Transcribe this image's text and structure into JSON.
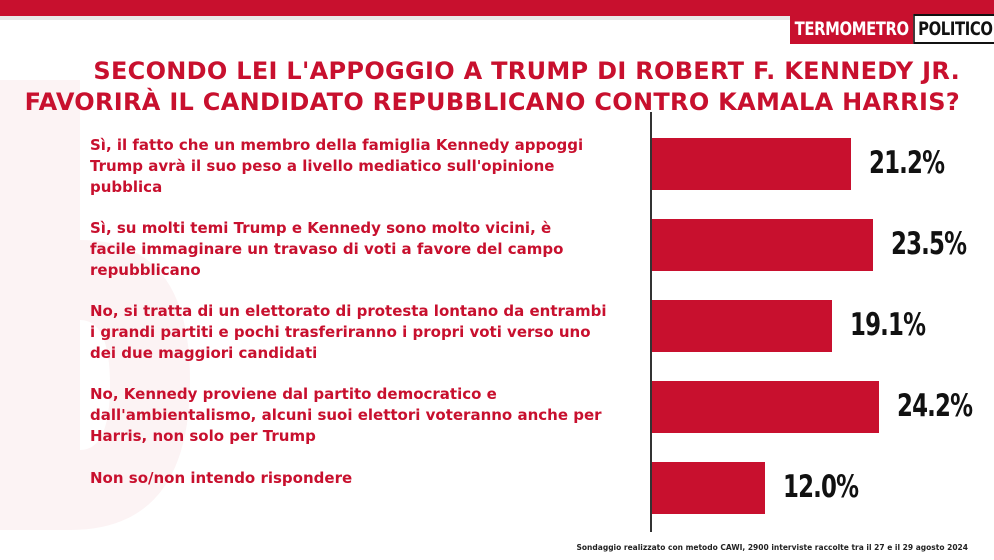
{
  "logo": {
    "part1": "TERMOMETRO",
    "part2": "POLITICO"
  },
  "title": {
    "line1": "SECONDO LEI L'APPOGGIO A TRUMP DI ROBERT F. KENNEDY JR.",
    "line2": "FAVORIRÀ IL CANDIDATO REPUBBLICANO CONTRO KAMALA HARRIS?"
  },
  "chart_data": {
    "type": "bar",
    "orientation": "horizontal",
    "categories": [
      "Sì, il fatto che un membro della famiglia Kennedy appoggi Trump avrà il suo peso a livello mediatico sull'opinione pubblica",
      "Sì, su molti temi Trump e Kennedy sono molto vicini, è facile immaginare un travaso di voti a favore del campo repubblicano",
      "No, si tratta di un elettorato di protesta lontano da entrambi i grandi partiti e pochi trasferiranno i propri voti verso uno dei due maggiori candidati",
      "No, Kennedy proviene dal partito democratico e dall'ambientalismo, alcuni suoi elettori voteranno anche per Harris, non solo per Trump",
      "Non so/non intendo rispondere"
    ],
    "label_lines": [
      [
        "Sì, il fatto che un membro della famiglia Kennedy appoggi",
        "Trump avrà il suo peso a livello mediatico sull'opinione",
        "pubblica"
      ],
      [
        "Sì, su molti temi Trump e Kennedy sono molto vicini, è",
        "facile immaginare un travaso di voti a favore del campo",
        "repubblicano"
      ],
      [
        "No, si tratta di un elettorato di protesta lontano da entrambi",
        "i grandi partiti e pochi trasferiranno i propri voti verso uno",
        "dei due maggiori candidati"
      ],
      [
        "No, Kennedy proviene dal partito democratico e",
        "dall'ambientalismo, alcuni suoi elettori voteranno anche per",
        "Harris, non solo per Trump"
      ],
      [
        "Non so/non intendo rispondere"
      ]
    ],
    "values": [
      21.2,
      23.5,
      19.1,
      24.2,
      12.0
    ],
    "value_labels": [
      "21.2%",
      "23.5%",
      "19.1%",
      "24.2%",
      "12.0%"
    ],
    "bar_color": "#c8102e",
    "grid": false
  },
  "footnote": "Sondaggio realizzato con metodo CAWI, 2900 interviste raccolte tra il 27 e il 29 agosto 2024"
}
